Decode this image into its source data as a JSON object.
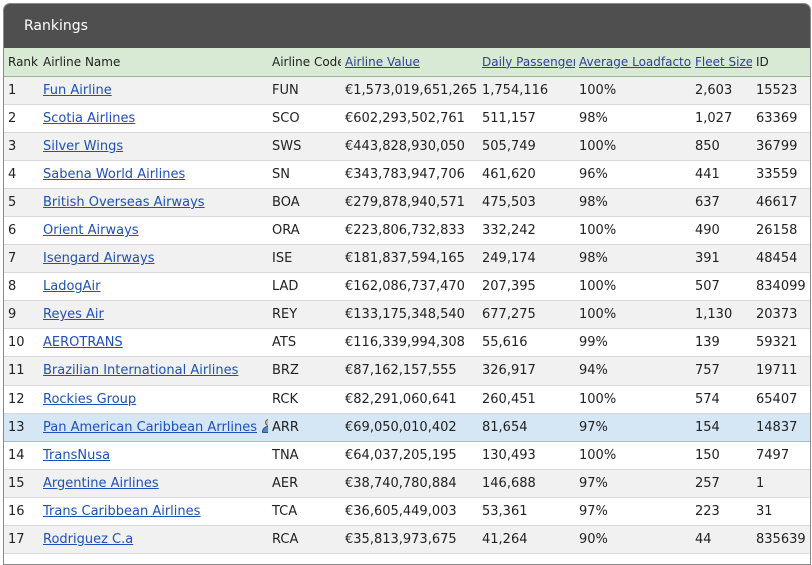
{
  "panel": {
    "title": "Rankings"
  },
  "columns": [
    {
      "key": "rank",
      "label": "Rank",
      "sortable": false
    },
    {
      "key": "name",
      "label": "Airline Name",
      "sortable": false
    },
    {
      "key": "code",
      "label": "Airline Code",
      "sortable": false
    },
    {
      "key": "value",
      "label": "Airline Value",
      "sortable": true
    },
    {
      "key": "pax",
      "label": "Daily Passengers",
      "sortable": true
    },
    {
      "key": "lf",
      "label": "Average Loadfactor",
      "sortable": true
    },
    {
      "key": "fleet",
      "label": "Fleet Size",
      "sortable": true
    },
    {
      "key": "id",
      "label": "ID",
      "sortable": false
    }
  ],
  "rows": [
    {
      "rank": "1",
      "name": "Fun Airline",
      "code": "FUN",
      "value": "€1,573,019,651,265",
      "pax": "1,754,116",
      "lf": "100%",
      "fleet": "2,603",
      "id": "15523"
    },
    {
      "rank": "2",
      "name": "Scotia Airlines",
      "code": "SCO",
      "value": "€602,293,502,761",
      "pax": "511,157",
      "lf": "98%",
      "fleet": "1,027",
      "id": "63369"
    },
    {
      "rank": "3",
      "name": "Silver Wings",
      "code": "SWS",
      "value": "€443,828,930,050",
      "pax": "505,749",
      "lf": "100%",
      "fleet": "850",
      "id": "36799"
    },
    {
      "rank": "4",
      "name": "Sabena World Airlines",
      "code": "SN",
      "value": "€343,783,947,706",
      "pax": "461,620",
      "lf": "96%",
      "fleet": "441",
      "id": "33559"
    },
    {
      "rank": "5",
      "name": "British Overseas Airways",
      "code": "BOA",
      "value": "€279,878,940,571",
      "pax": "475,503",
      "lf": "98%",
      "fleet": "637",
      "id": "46617"
    },
    {
      "rank": "6",
      "name": "Orient Airways",
      "code": "ORA",
      "value": "€223,806,732,833",
      "pax": "332,242",
      "lf": "100%",
      "fleet": "490",
      "id": "26158"
    },
    {
      "rank": "7",
      "name": "Isengard Airways",
      "code": "ISE",
      "value": "€181,837,594,165",
      "pax": "249,174",
      "lf": "98%",
      "fleet": "391",
      "id": "48454"
    },
    {
      "rank": "8",
      "name": "LadogAir",
      "code": "LAD",
      "value": "€162,086,737,470",
      "pax": "207,395",
      "lf": "100%",
      "fleet": "507",
      "id": "834099"
    },
    {
      "rank": "9",
      "name": "Reyes Air",
      "code": "REY",
      "value": "€133,175,348,540",
      "pax": "677,275",
      "lf": "100%",
      "fleet": "1,130",
      "id": "20373"
    },
    {
      "rank": "10",
      "name": "AEROTRANS",
      "code": "ATS",
      "value": "€116,339,994,308",
      "pax": "55,616",
      "lf": "99%",
      "fleet": "139",
      "id": "59321"
    },
    {
      "rank": "11",
      "name": "Brazilian International Airlines",
      "code": "BRZ",
      "value": "€87,162,157,555",
      "pax": "326,917",
      "lf": "94%",
      "fleet": "757",
      "id": "19711"
    },
    {
      "rank": "12",
      "name": "Rockies Group",
      "code": "RCK",
      "value": "€82,291,060,641",
      "pax": "260,451",
      "lf": "100%",
      "fleet": "574",
      "id": "65407"
    },
    {
      "rank": "13",
      "name": "Pan American Caribbean Arrlines",
      "code": "ARR",
      "value": "€69,050,010,402",
      "pax": "81,654",
      "lf": "97%",
      "fleet": "154",
      "id": "14837",
      "highlight": true,
      "icon": "user-icon"
    },
    {
      "rank": "14",
      "name": "TransNusa",
      "code": "TNA",
      "value": "€64,037,205,195",
      "pax": "130,493",
      "lf": "100%",
      "fleet": "150",
      "id": "7497"
    },
    {
      "rank": "15",
      "name": "Argentine Airlines",
      "code": "AER",
      "value": "€38,740,780,884",
      "pax": "146,688",
      "lf": "97%",
      "fleet": "257",
      "id": "1"
    },
    {
      "rank": "16",
      "name": "Trans Caribbean Airlines",
      "code": "TCA",
      "value": "€36,605,449,003",
      "pax": "53,361",
      "lf": "97%",
      "fleet": "223",
      "id": "31"
    },
    {
      "rank": "17",
      "name": "Rodriguez C.a",
      "code": "RCA",
      "value": "€35,813,973,675",
      "pax": "41,264",
      "lf": "90%",
      "fleet": "44",
      "id": "835639"
    }
  ]
}
